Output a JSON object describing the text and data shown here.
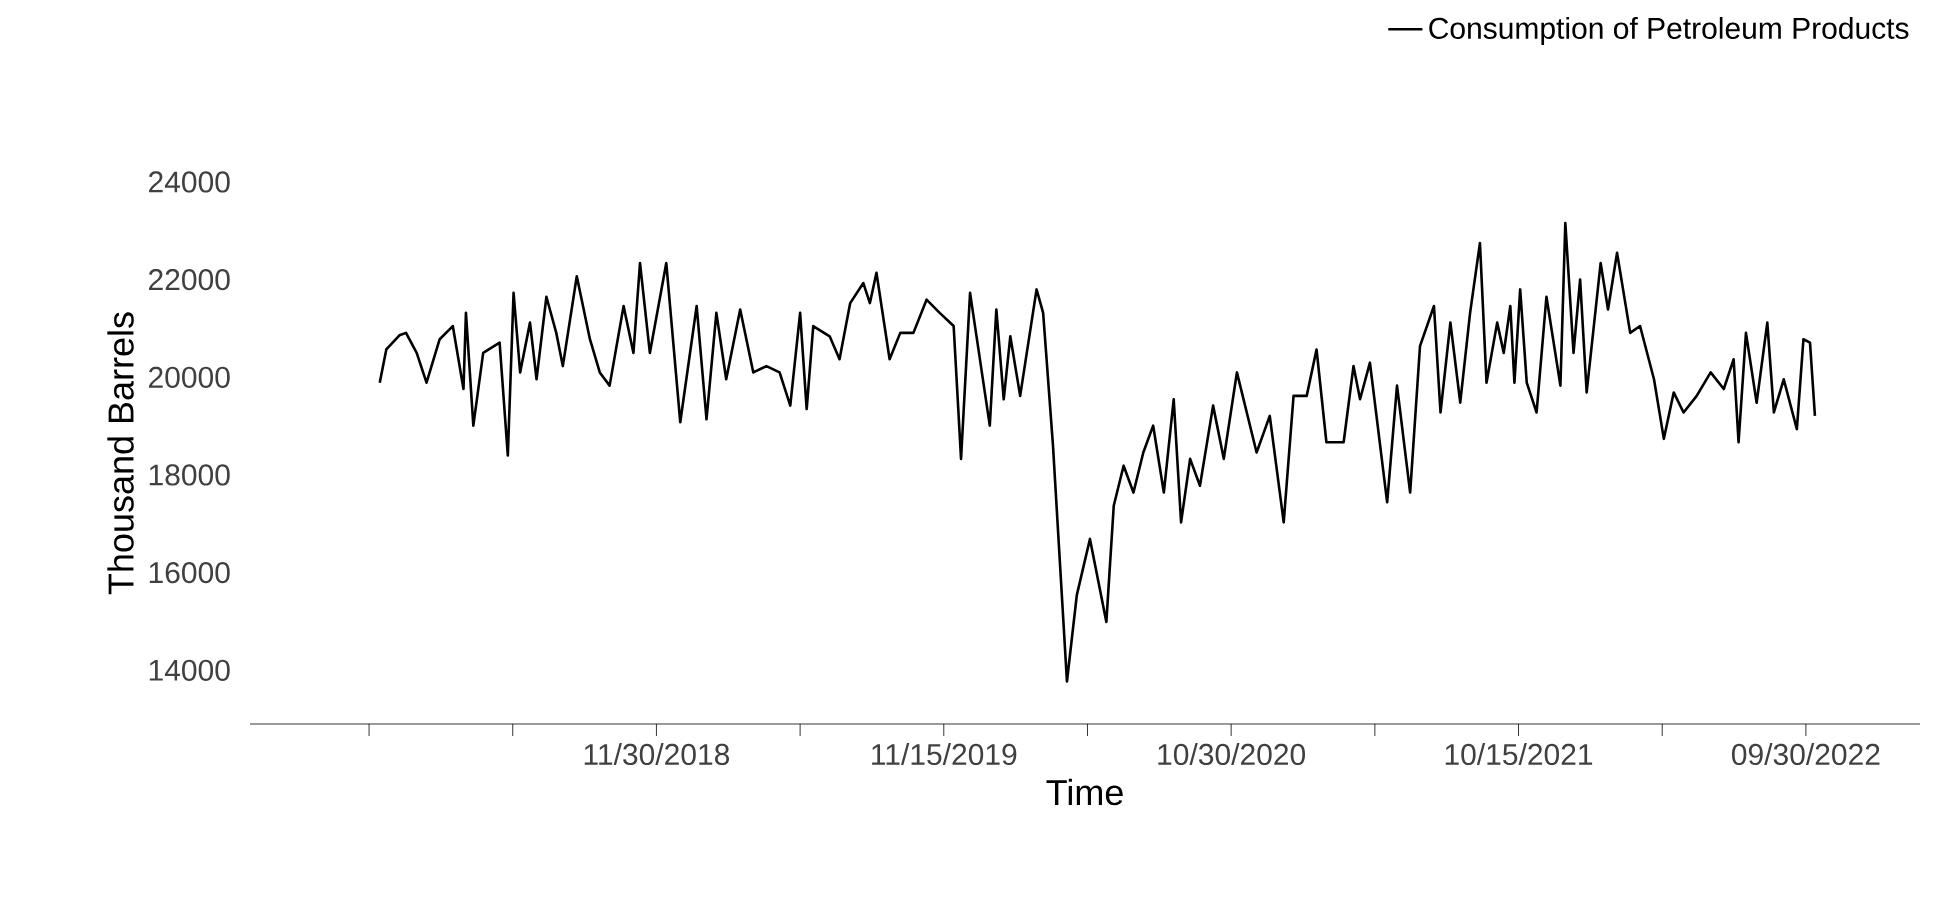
{
  "chart_data": {
    "type": "line",
    "xlabel": "Time",
    "ylabel": "Thousand Barrels",
    "legend": "top right",
    "marker": "none",
    "line_style": "solid",
    "grid": false,
    "xlim": [
      "2017-07-23",
      "2023-02-16"
    ],
    "xticks": [
      {
        "value": "2017-12-15",
        "label": null
      },
      {
        "value": "2018-06-08",
        "label": null
      },
      {
        "value": "2018-11-30",
        "label": "11/30/2018"
      },
      {
        "value": "2019-05-24",
        "label": null
      },
      {
        "value": "2019-11-15",
        "label": "11/15/2019"
      },
      {
        "value": "2020-05-08",
        "label": null
      },
      {
        "value": "2020-10-30",
        "label": "10/30/2020"
      },
      {
        "value": "2021-04-23",
        "label": null
      },
      {
        "value": "2021-10-15",
        "label": "10/15/2021"
      },
      {
        "value": "2022-04-08",
        "label": null
      },
      {
        "value": "2022-09-30",
        "label": "09/30/2022"
      }
    ],
    "ylim": [
      12900,
      24000
    ],
    "yticks": [
      14000,
      16000,
      18000,
      20000,
      22000,
      24000
    ],
    "x": [
      "2017-12-28",
      "2018-01-05",
      "2018-01-21",
      "2018-01-29",
      "2018-02-11",
      "2018-02-23",
      "2018-03-11",
      "2018-03-27",
      "2018-04-09",
      "2018-04-12",
      "2018-04-21",
      "2018-05-03",
      "2018-05-23",
      "2018-06-02",
      "2018-06-09",
      "2018-06-17",
      "2018-06-29",
      "2018-07-07",
      "2018-07-19",
      "2018-07-31",
      "2018-08-08",
      "2018-08-25",
      "2018-09-10",
      "2018-09-22",
      "2018-10-04",
      "2018-10-21",
      "2018-11-02",
      "2018-11-10",
      "2018-11-22",
      "2018-12-12",
      "2018-12-29",
      "2019-01-18",
      "2019-01-30",
      "2019-02-11",
      "2019-02-23",
      "2019-03-12",
      "2019-03-28",
      "2019-04-13",
      "2019-04-29",
      "2019-05-12",
      "2019-05-24",
      "2019-06-01",
      "2019-06-09",
      "2019-06-29",
      "2019-07-11",
      "2019-07-24",
      "2019-08-09",
      "2019-08-17",
      "2019-08-25",
      "2019-09-10",
      "2019-09-23",
      "2019-10-09",
      "2019-10-25",
      "2019-11-10",
      "2019-11-27",
      "2019-12-06",
      "2019-12-17",
      "2020-01-10",
      "2020-01-18",
      "2020-01-27",
      "2020-02-04",
      "2020-02-16",
      "2020-03-07",
      "2020-03-15",
      "2020-03-27",
      "2020-04-13",
      "2020-04-25",
      "2020-05-11",
      "2020-05-31",
      "2020-06-09",
      "2020-06-21",
      "2020-07-03",
      "2020-07-15",
      "2020-07-27",
      "2020-08-09",
      "2020-08-21",
      "2020-08-30",
      "2020-09-10",
      "2020-09-22",
      "2020-10-08",
      "2020-10-21",
      "2020-11-06",
      "2020-11-30",
      "2020-12-16",
      "2021-01-02",
      "2021-01-14",
      "2021-01-30",
      "2021-02-11",
      "2021-02-23",
      "2021-03-16",
      "2021-03-28",
      "2021-04-05",
      "2021-04-17",
      "2021-05-08",
      "2021-05-20",
      "2021-06-05",
      "2021-06-17",
      "2021-07-04",
      "2021-07-12",
      "2021-07-24",
      "2021-08-05",
      "2021-08-17",
      "2021-08-29",
      "2021-09-06",
      "2021-09-19",
      "2021-09-27",
      "2021-10-05",
      "2021-10-10",
      "2021-10-17",
      "2021-10-25",
      "2021-11-06",
      "2021-11-18",
      "2021-12-05",
      "2021-12-11",
      "2021-12-21",
      "2021-12-29",
      "2022-01-06",
      "2022-01-23",
      "2022-02-01",
      "2022-02-12",
      "2022-02-28",
      "2022-03-12",
      "2022-03-29",
      "2022-04-10",
      "2022-04-22",
      "2022-05-04",
      "2022-05-20",
      "2022-06-06",
      "2022-06-22",
      "2022-07-04",
      "2022-07-10",
      "2022-07-19",
      "2022-08-01",
      "2022-08-14",
      "2022-08-22",
      "2022-09-03",
      "2022-09-19",
      "2022-09-27",
      "2022-10-05",
      "2022-10-11"
    ],
    "series": [
      {
        "name": "Consumption of Petroleum Products",
        "color": "#000000",
        "values": [
          19890,
          20570,
          20860,
          20910,
          20500,
          19890,
          20780,
          21050,
          19760,
          21320,
          19010,
          20500,
          20710,
          18400,
          21730,
          20100,
          21120,
          19960,
          21650,
          20910,
          20230,
          22070,
          20780,
          20100,
          19830,
          21460,
          20500,
          22340,
          20500,
          22340,
          19080,
          21460,
          19140,
          21320,
          19960,
          21390,
          20100,
          20230,
          20100,
          19420,
          21320,
          19350,
          21050,
          20840,
          20370,
          21520,
          21930,
          21520,
          22140,
          20370,
          20910,
          20910,
          21590,
          21320,
          21050,
          18330,
          21730,
          19010,
          21390,
          19550,
          20840,
          19620,
          21800,
          21320,
          18600,
          13770,
          15540,
          16690,
          14990,
          17370,
          18190,
          17640,
          18460,
          19010,
          17640,
          19550,
          17030,
          18330,
          17780,
          19420,
          18330,
          20100,
          18460,
          19210,
          17030,
          19620,
          19620,
          20570,
          18670,
          18670,
          20230,
          19550,
          20300,
          17440,
          19830,
          17640,
          20640,
          21460,
          19280,
          21120,
          19480,
          21320,
          22750,
          19890,
          21120,
          20500,
          21460,
          19890,
          21800,
          19890,
          19280,
          21650,
          19830,
          23160,
          20500,
          22000,
          19690,
          22340,
          21390,
          22550,
          20910,
          21050,
          19960,
          18740,
          19690,
          19280,
          19620,
          20100,
          19760,
          20370,
          18670,
          20910,
          19480,
          21120,
          19280,
          19960,
          18940,
          20780,
          20710,
          19210
        ]
      }
    ]
  }
}
